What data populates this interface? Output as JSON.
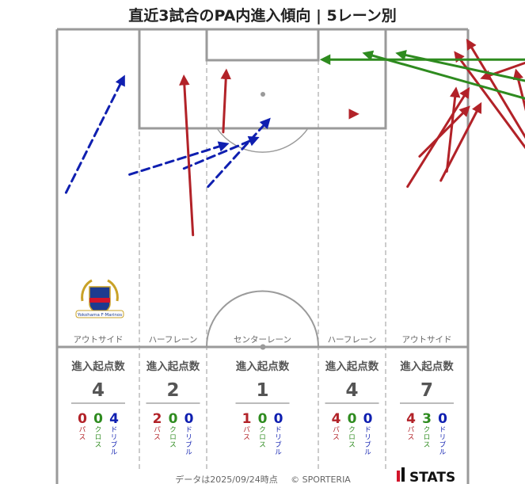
{
  "title": "直近3試合のPA内進入傾向 | 5レーン別",
  "footer": {
    "timestamp": "データは2025/09/24時点",
    "copyright": "© SPORTERIA",
    "brand": "STATS"
  },
  "crest": {
    "text": "Yokohama F·Marinos"
  },
  "colors": {
    "pass": "#b22228",
    "cross": "#2e8b1f",
    "dribble": "#0f1fb0",
    "pitch_line": "#9a9a9a"
  },
  "legend": {
    "pass": "パス",
    "cross": "クロス",
    "dribble": "ドリブル",
    "start_count_label": "進入起点数"
  },
  "chart_data": {
    "type": "pitch-arrow-map",
    "title": "直近3試合のPA内進入傾向 | 5レーン別",
    "lanes": [
      {
        "name": "アウトサイド",
        "total": 4,
        "pass": 0,
        "cross": 0,
        "dribble": 4
      },
      {
        "name": "ハーフレーン",
        "total": 2,
        "pass": 2,
        "cross": 0,
        "dribble": 0
      },
      {
        "name": "センターレーン",
        "total": 1,
        "pass": 1,
        "cross": 0,
        "dribble": 0
      },
      {
        "name": "ハーフレーン",
        "total": 4,
        "pass": 4,
        "cross": 0,
        "dribble": 0
      },
      {
        "name": "アウトサイド",
        "total": 7,
        "pass": 4,
        "cross": 3,
        "dribble": 0
      }
    ],
    "arrows": [
      {
        "kind": "dribble",
        "from": [
          1.5,
          78.0
        ],
        "to": [
          11.0,
          97.0
        ]
      },
      {
        "kind": "dribble",
        "from": [
          12.0,
          81.0
        ],
        "to": [
          28.0,
          86.0
        ]
      },
      {
        "kind": "dribble",
        "from": [
          21.0,
          82.0
        ],
        "to": [
          33.0,
          87.0
        ]
      },
      {
        "kind": "dribble",
        "from": [
          25.0,
          79.0
        ],
        "to": [
          35.0,
          90.0
        ]
      },
      {
        "kind": "pass",
        "from": [
          22.5,
          71.0
        ],
        "to": [
          21.0,
          97.0
        ]
      },
      {
        "kind": "pass",
        "from": [
          27.5,
          88.0
        ],
        "to": [
          28.0,
          98.0
        ]
      },
      {
        "kind": "pass",
        "from": [
          48.5,
          91.0
        ],
        "to": [
          49.5,
          91.0
        ]
      },
      {
        "kind": "pass",
        "from": [
          60.0,
          84.0
        ],
        "to": [
          68.0,
          92.0
        ]
      },
      {
        "kind": "pass",
        "from": [
          58.0,
          79.0
        ],
        "to": [
          68.0,
          95.0
        ]
      },
      {
        "kind": "pass",
        "from": [
          63.5,
          80.0
        ],
        "to": [
          70.0,
          92.5
        ]
      },
      {
        "kind": "pass",
        "from": [
          64.5,
          81.5
        ],
        "to": [
          66.0,
          95.0
        ]
      },
      {
        "kind": "pass",
        "from": [
          86.0,
          73.0
        ],
        "to": [
          68.0,
          103.0
        ]
      },
      {
        "kind": "pass",
        "from": [
          83.0,
          78.0
        ],
        "to": [
          66.0,
          101.0
        ]
      },
      {
        "kind": "pass",
        "from": [
          80.5,
          80.0
        ],
        "to": [
          76.0,
          98.0
        ]
      },
      {
        "kind": "pass",
        "from": [
          79.0,
          100.0
        ],
        "to": [
          70.5,
          97.0
        ]
      },
      {
        "kind": "cross",
        "from": [
          90.0,
          100.0
        ],
        "to": [
          44.0,
          100.0
        ]
      },
      {
        "kind": "cross",
        "from": [
          83.0,
          92.0
        ],
        "to": [
          51.0,
          101.0
        ]
      },
      {
        "kind": "cross",
        "from": [
          89.0,
          94.0
        ],
        "to": [
          56.5,
          101.0
        ]
      }
    ]
  }
}
